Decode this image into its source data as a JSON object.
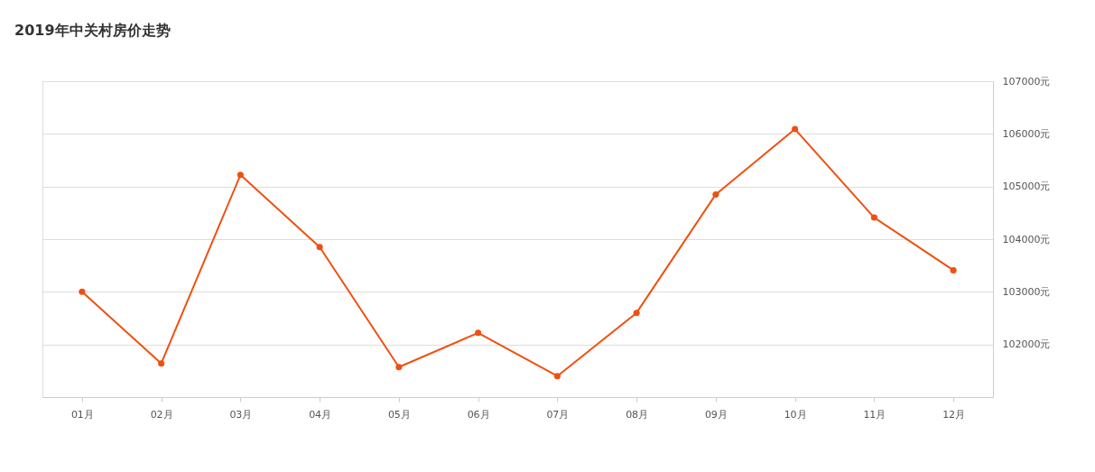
{
  "chart_data": {
    "type": "line",
    "title": "2019年中关村房价走势",
    "categories": [
      "01月",
      "02月",
      "03月",
      "04月",
      "05月",
      "06月",
      "07月",
      "08月",
      "09月",
      "10月",
      "11月",
      "12月"
    ],
    "series": [
      {
        "color": "#f0500f",
        "values": [
          103000,
          101640,
          105220,
          103850,
          101570,
          102220,
          101400,
          102600,
          104850,
          106090,
          104410,
          103410
        ]
      }
    ],
    "ylim": [
      101000,
      107000
    ],
    "yticks": [
      {
        "value": 102000,
        "label": "102000元"
      },
      {
        "value": 103000,
        "label": "103000元"
      },
      {
        "value": 104000,
        "label": "104000元"
      },
      {
        "value": 105000,
        "label": "105000元"
      },
      {
        "value": 106000,
        "label": "106000元"
      },
      {
        "value": 107000,
        "label": "107000元"
      }
    ],
    "grid": "y",
    "legend": false,
    "marker": "circle",
    "line_style": "solid"
  }
}
